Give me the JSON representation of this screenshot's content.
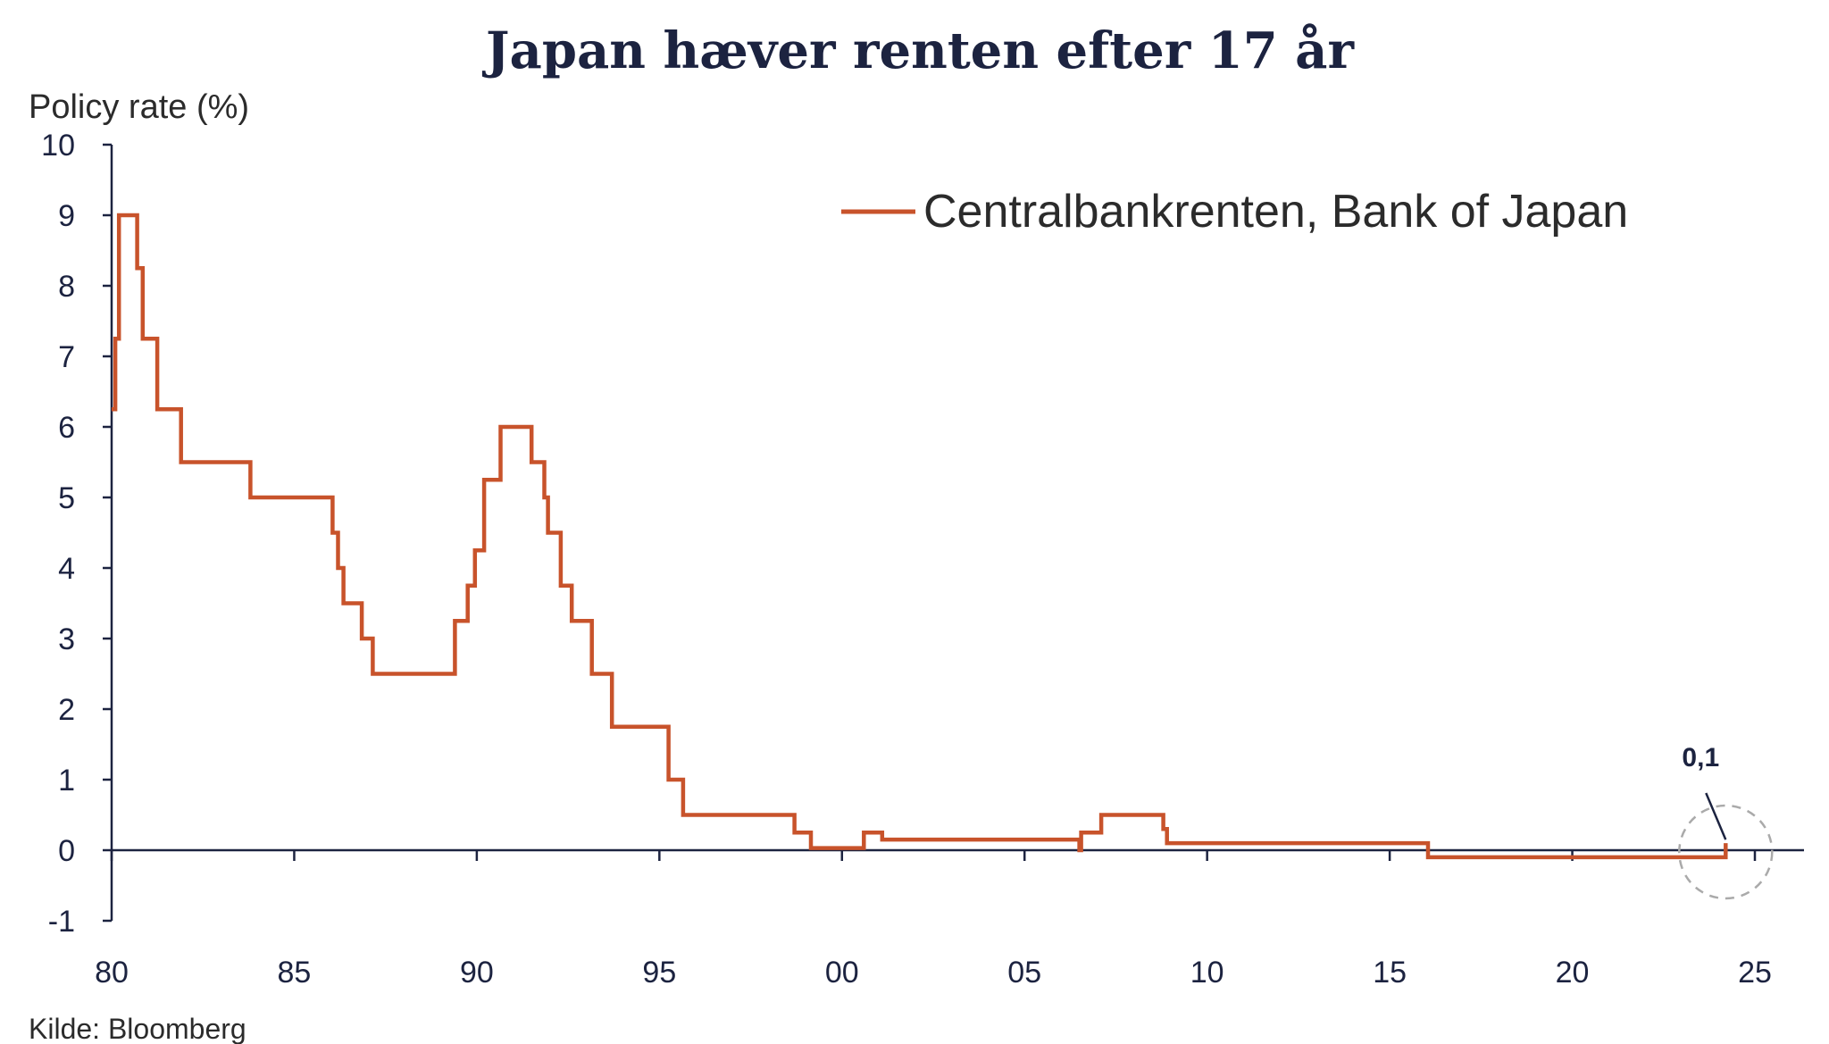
{
  "chart_data": {
    "type": "line",
    "title": "Japan hæver renten efter 17 år",
    "ylabel": "Policy rate (%)",
    "xlabel": "",
    "source": "Kilde: Bloomberg",
    "xlim": [
      1980,
      2025
    ],
    "ylim": [
      -1,
      10
    ],
    "x_tick_labels": [
      {
        "value": 1980,
        "label": "80"
      },
      {
        "value": 1985,
        "label": "85"
      },
      {
        "value": 1990,
        "label": "90"
      },
      {
        "value": 1995,
        "label": "95"
      },
      {
        "value": 2000,
        "label": "00"
      },
      {
        "value": 2005,
        "label": "05"
      },
      {
        "value": 2010,
        "label": "10"
      },
      {
        "value": 2015,
        "label": "15"
      },
      {
        "value": 2020,
        "label": "20"
      },
      {
        "value": 2025,
        "label": "25"
      }
    ],
    "y_ticks": [
      -1,
      0,
      1,
      2,
      3,
      4,
      5,
      6,
      7,
      8,
      9,
      10
    ],
    "grid": false,
    "legend_position": "top-right",
    "series": [
      {
        "name": "Centralbankrenten, Bank of Japan",
        "color": "#c8532b",
        "step": true,
        "points": [
          [
            1980.0,
            6.25
          ],
          [
            1980.1,
            7.25
          ],
          [
            1980.2,
            9.0
          ],
          [
            1980.7,
            8.25
          ],
          [
            1980.85,
            7.25
          ],
          [
            1981.25,
            6.25
          ],
          [
            1981.9,
            5.5
          ],
          [
            1983.8,
            5.0
          ],
          [
            1986.05,
            4.5
          ],
          [
            1986.2,
            4.0
          ],
          [
            1986.35,
            3.5
          ],
          [
            1986.85,
            3.0
          ],
          [
            1987.15,
            2.5
          ],
          [
            1989.4,
            3.25
          ],
          [
            1989.75,
            3.75
          ],
          [
            1989.95,
            4.25
          ],
          [
            1990.2,
            5.25
          ],
          [
            1990.65,
            6.0
          ],
          [
            1991.5,
            5.5
          ],
          [
            1991.85,
            5.0
          ],
          [
            1991.95,
            4.5
          ],
          [
            1992.3,
            3.75
          ],
          [
            1992.6,
            3.25
          ],
          [
            1993.15,
            2.5
          ],
          [
            1993.7,
            1.75
          ],
          [
            1995.25,
            1.0
          ],
          [
            1995.65,
            0.5
          ],
          [
            1998.7,
            0.25
          ],
          [
            1999.15,
            0.03
          ],
          [
            2000.6,
            0.25
          ],
          [
            2001.1,
            0.15
          ],
          [
            2006.5,
            0.0
          ],
          [
            2006.55,
            0.25
          ],
          [
            2007.1,
            0.5
          ],
          [
            2008.8,
            0.3
          ],
          [
            2008.9,
            0.1
          ],
          [
            2016.05,
            -0.1
          ],
          [
            2024.2,
            0.1
          ]
        ]
      }
    ],
    "annotations": [
      {
        "text": "0,1",
        "x": 2024.2,
        "y": 0.1
      }
    ]
  }
}
